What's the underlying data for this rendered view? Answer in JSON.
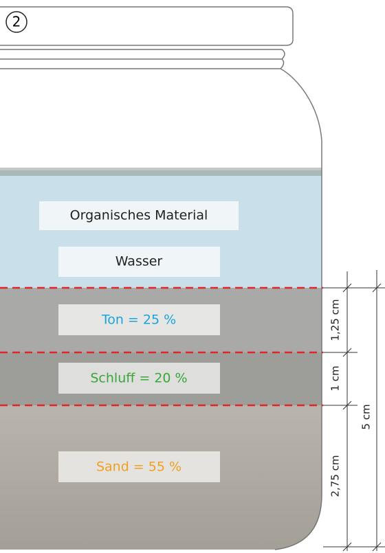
{
  "badge": "2",
  "layers": [
    {
      "label": "Organisches Material"
    },
    {
      "label": "Wasser"
    },
    {
      "label": "Ton = 25 %"
    },
    {
      "label": "Schluff = 20 %"
    },
    {
      "label": "Sand = 55 %"
    }
  ],
  "dimensions": [
    {
      "label": "1,25 cm"
    },
    {
      "label": "1 cm"
    },
    {
      "label": "2,75 cm"
    },
    {
      "label": "5 cm"
    }
  ]
}
